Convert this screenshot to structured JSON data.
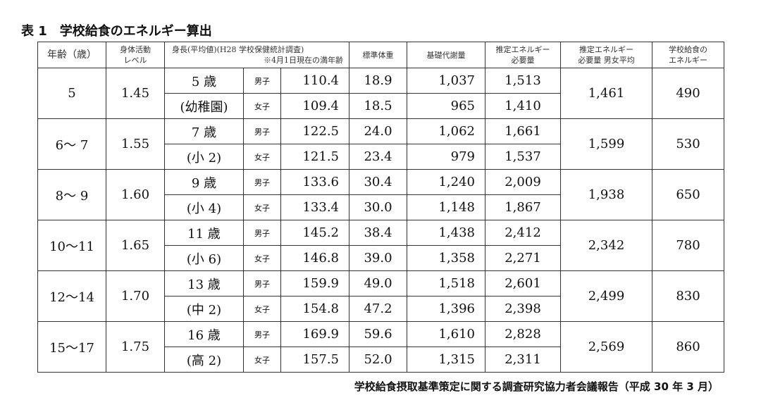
{
  "title": "表 1　学校給食のエネルギー算出",
  "headers": {
    "age": "年齢（歳）",
    "activity": "身体活動\nレベル",
    "height": "身長(平均値)(H28 学校保健統計調査)",
    "height_note": "※4月1日現在の満年齢",
    "weight": "標準体重",
    "bmr": "基礎代謝量",
    "energy": "推定エネルギー\n必要量",
    "energy_avg": "推定エネルギー\n必要量 男女平均",
    "school": "学校給食の\nエネルギー"
  },
  "groups": [
    {
      "age": "5",
      "activity": "1.45",
      "label1": "5 歳",
      "label2": "(幼稚園)",
      "avg": "1,461",
      "school": "490",
      "rows": [
        {
          "sex": "男子",
          "height": "110.4",
          "weight": "18.9",
          "bmr": "1,037",
          "energy": "1,513"
        },
        {
          "sex": "女子",
          "height": "109.4",
          "weight": "18.5",
          "bmr": "965",
          "energy": "1,410"
        }
      ]
    },
    {
      "age": "6〜 7",
      "activity": "1.55",
      "label1": "7 歳",
      "label2": "(小 2)",
      "avg": "1,599",
      "school": "530",
      "rows": [
        {
          "sex": "男子",
          "height": "122.5",
          "weight": "24.0",
          "bmr": "1,062",
          "energy": "1,661"
        },
        {
          "sex": "女子",
          "height": "121.5",
          "weight": "23.4",
          "bmr": "979",
          "energy": "1,537"
        }
      ]
    },
    {
      "age": "8〜 9",
      "activity": "1.60",
      "label1": "9 歳",
      "label2": "(小 4)",
      "avg": "1,938",
      "school": "650",
      "rows": [
        {
          "sex": "男子",
          "height": "133.6",
          "weight": "30.4",
          "bmr": "1,240",
          "energy": "2,009"
        },
        {
          "sex": "女子",
          "height": "133.4",
          "weight": "30.0",
          "bmr": "1,148",
          "energy": "1,867"
        }
      ]
    },
    {
      "age": "10〜11",
      "activity": "1.65",
      "label1": "11 歳",
      "label2": "(小 6)",
      "avg": "2,342",
      "school": "780",
      "rows": [
        {
          "sex": "男子",
          "height": "145.2",
          "weight": "38.4",
          "bmr": "1,438",
          "energy": "2,412"
        },
        {
          "sex": "女子",
          "height": "146.8",
          "weight": "39.0",
          "bmr": "1,358",
          "energy": "2,271"
        }
      ]
    },
    {
      "age": "12〜14",
      "activity": "1.70",
      "label1": "13 歳",
      "label2": "(中 2)",
      "avg": "2,499",
      "school": "830",
      "rows": [
        {
          "sex": "男子",
          "height": "159.9",
          "weight": "49.0",
          "bmr": "1,518",
          "energy": "2,601"
        },
        {
          "sex": "女子",
          "height": "154.8",
          "weight": "47.2",
          "bmr": "1,396",
          "energy": "2,398"
        }
      ]
    },
    {
      "age": "15〜17",
      "activity": "1.75",
      "label1": "16 歳",
      "label2": "(高 2)",
      "avg": "2,569",
      "school": "860",
      "rows": [
        {
          "sex": "男子",
          "height": "169.9",
          "weight": "59.6",
          "bmr": "1,610",
          "energy": "2,828"
        },
        {
          "sex": "女子",
          "height": "157.5",
          "weight": "52.0",
          "bmr": "1,315",
          "energy": "2,311"
        }
      ]
    }
  ],
  "source": "学校給食摂取基準策定に関する調査研究協力者会議報告（平成 30 年 3 月）"
}
